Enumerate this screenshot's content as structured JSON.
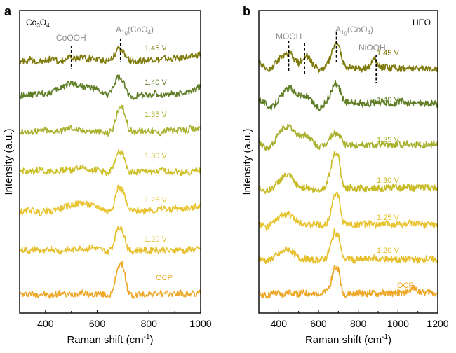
{
  "chart_data": [
    {
      "type": "line",
      "panel_label": "a",
      "sample": "Co3O4",
      "sample_parts": [
        "Co",
        "3",
        "O",
        "4"
      ],
      "xlabel": "Raman shift (cm",
      "xlabel_sup": "-1",
      "xlabel_close": ")",
      "ylabel": "Intensity (a.u.)",
      "xlim": [
        300,
        1000
      ],
      "xticks": [
        400,
        600,
        800,
        1000
      ],
      "xminor": [
        300,
        500,
        700,
        900
      ],
      "yticks": [],
      "grid": false,
      "annotations": [
        {
          "text": "CoOOH",
          "x": 500
        },
        {
          "text": "A1g(CoO4)",
          "parts": [
            "A",
            "1g",
            "(CoO",
            "4",
            ")"
          ],
          "x": 690
        }
      ],
      "x": [
        300,
        320,
        340,
        360,
        380,
        400,
        420,
        440,
        460,
        480,
        500,
        520,
        540,
        560,
        580,
        600,
        620,
        640,
        660,
        680,
        700,
        720,
        740,
        760,
        780,
        800,
        820,
        840,
        860,
        880,
        900,
        920,
        940,
        960,
        980,
        1000
      ],
      "series": [
        {
          "name": "OCP",
          "color": "#eea829",
          "values": [
            2.7,
            2.6,
            2.9,
            2.5,
            2.8,
            2.6,
            2.4,
            2.7,
            2.9,
            2.6,
            2.7,
            2.8,
            3.0,
            2.7,
            2.6,
            2.8,
            2.7,
            2.5,
            2.9,
            6.8,
            6.9,
            2.9,
            2.4,
            2.7,
            2.6,
            2.8,
            2.7,
            2.9,
            2.6,
            2.8,
            2.7,
            2.9,
            2.6,
            2.8,
            2.7,
            2.9
          ]
        },
        {
          "name": "1.20 V",
          "color": "#e6c02f",
          "values": [
            8.9,
            9.1,
            8.8,
            9.2,
            8.9,
            8.7,
            9.3,
            9.0,
            8.8,
            9.1,
            9.0,
            9.2,
            9.3,
            9.1,
            9.4,
            9.2,
            9.0,
            8.7,
            9.6,
            12.4,
            11.8,
            9.0,
            8.8,
            9.1,
            9.0,
            8.8,
            9.2,
            8.9,
            9.1,
            8.8,
            9.0,
            9.1,
            8.8,
            9.2,
            9.0,
            9.3
          ]
        },
        {
          "name": "1.25 V",
          "color": "#e8c432",
          "values": [
            14.6,
            14.4,
            14.8,
            14.5,
            14.3,
            14.6,
            14.4,
            14.9,
            15.0,
            15.2,
            15.4,
            15.6,
            15.8,
            15.5,
            15.3,
            15.2,
            14.9,
            14.4,
            15.2,
            18.0,
            17.6,
            14.8,
            14.5,
            14.7,
            14.6,
            14.9,
            14.6,
            14.8,
            15.0,
            14.7,
            15.1,
            14.8,
            15.0,
            14.9,
            15.2,
            15.4
          ]
        },
        {
          "name": "1.30 V",
          "color": "#cdbf26",
          "values": [
            20.1,
            20.4,
            20.0,
            20.3,
            20.5,
            20.2,
            20.4,
            20.1,
            20.3,
            20.6,
            20.4,
            20.7,
            20.9,
            20.6,
            20.4,
            20.5,
            20.2,
            20.0,
            20.6,
            23.3,
            22.8,
            20.3,
            20.0,
            20.2,
            20.1,
            20.3,
            20.0,
            20.2,
            20.4,
            20.1,
            20.3,
            20.0,
            20.2,
            20.1,
            20.3,
            20.4
          ]
        },
        {
          "name": "1.35 V",
          "color": "#a9b02e",
          "values": [
            25.8,
            26.0,
            25.7,
            26.1,
            25.9,
            26.2,
            25.8,
            26.1,
            26.0,
            26.3,
            26.5,
            26.2,
            26.0,
            26.1,
            25.9,
            26.0,
            25.8,
            25.6,
            26.3,
            28.8,
            29.4,
            26.4,
            25.8,
            26.1,
            25.9,
            26.2,
            25.9,
            25.7,
            26.0,
            26.2,
            25.9,
            26.1,
            26.0,
            26.3,
            26.2,
            26.6
          ]
        },
        {
          "name": "1.40 V",
          "color": "#5f7e26",
          "values": [
            31.0,
            31.3,
            31.1,
            31.2,
            31.4,
            31.3,
            31.6,
            31.8,
            32.2,
            32.6,
            32.9,
            32.6,
            32.4,
            32.3,
            32.1,
            31.9,
            31.5,
            31.0,
            32.2,
            33.8,
            33.0,
            31.2,
            30.9,
            31.1,
            31.2,
            31.0,
            31.3,
            31.2,
            31.1,
            31.4,
            31.2,
            31.5,
            31.4,
            31.6,
            31.9,
            32.4
          ]
        },
        {
          "name": "1.45 V",
          "color": "#7f7a0c",
          "values": [
            35.8,
            36.0,
            36.2,
            35.9,
            36.1,
            36.0,
            36.3,
            36.1,
            35.9,
            36.2,
            36.5,
            36.3,
            36.6,
            36.2,
            36.4,
            36.2,
            36.1,
            36.0,
            36.6,
            37.6,
            37.3,
            36.2,
            35.9,
            36.1,
            36.0,
            36.2,
            36.3,
            36.1,
            36.4,
            36.2,
            36.5,
            36.3,
            36.6,
            36.5,
            36.8,
            37.0
          ]
        }
      ]
    },
    {
      "type": "line",
      "panel_label": "b",
      "sample": "HEO",
      "sample_parts": [
        "HEO"
      ],
      "xlabel": "Raman shift (cm",
      "xlabel_sup": "-1",
      "xlabel_close": ")",
      "ylabel": "Intensity (a.u.)",
      "xlim": [
        300,
        1200
      ],
      "xticks": [
        400,
        600,
        800,
        1000,
        1200
      ],
      "xminor": [
        300,
        500,
        700,
        900,
        1100
      ],
      "yticks": [],
      "grid": false,
      "annotations": [
        {
          "text": "MOOH",
          "x": [
            450,
            530
          ]
        },
        {
          "text": "A1g(CoO4)",
          "parts": [
            "A",
            "1g",
            "(CoO",
            "4",
            ")"
          ],
          "x": 690
        },
        {
          "text": "NiOOH",
          "x": 890
        }
      ],
      "x": [
        300,
        320,
        340,
        360,
        380,
        400,
        420,
        440,
        460,
        480,
        500,
        520,
        540,
        560,
        580,
        600,
        620,
        640,
        660,
        680,
        700,
        720,
        740,
        760,
        780,
        800,
        820,
        840,
        860,
        880,
        900,
        920,
        940,
        960,
        980,
        1000,
        1020,
        1040,
        1060,
        1080,
        1100,
        1120,
        1140,
        1160,
        1180,
        1200
      ],
      "series": [
        {
          "name": "OCP",
          "color": "#eea829",
          "values": [
            2.8,
            2.6,
            2.4,
            2.7,
            2.9,
            2.8,
            2.6,
            2.9,
            3.0,
            2.8,
            2.7,
            2.9,
            2.8,
            2.7,
            2.6,
            2.9,
            2.8,
            3.1,
            4.2,
            6.6,
            6.3,
            3.0,
            2.6,
            2.8,
            2.7,
            2.9,
            2.8,
            2.7,
            2.9,
            2.8,
            2.7,
            2.9,
            2.8,
            2.9,
            2.7,
            3.0,
            2.8,
            3.0,
            3.2,
            3.6,
            3.2,
            3.0,
            2.9,
            3.1,
            2.9,
            2.8
          ]
        },
        {
          "name": "1.20 V",
          "color": "#e6c02f",
          "values": [
            7.8,
            7.6,
            7.4,
            7.7,
            8.1,
            8.4,
            8.8,
            9.2,
            9.0,
            8.4,
            7.9,
            7.7,
            7.8,
            7.6,
            7.5,
            7.7,
            7.6,
            7.9,
            9.6,
            11.6,
            11.2,
            8.1,
            7.6,
            7.8,
            7.5,
            7.7,
            7.6,
            7.8,
            7.7,
            7.9,
            7.6,
            7.8,
            7.7,
            7.6,
            7.8,
            7.5,
            7.7,
            7.6,
            7.8,
            7.7,
            7.5,
            7.6,
            7.8,
            7.7,
            7.6,
            7.5
          ]
        },
        {
          "name": "1.25 V",
          "color": "#e8c432",
          "values": [
            12.8,
            12.5,
            12.2,
            12.6,
            13.1,
            13.6,
            14.0,
            14.2,
            14.0,
            13.4,
            13.0,
            12.9,
            12.7,
            12.5,
            12.8,
            12.6,
            12.4,
            12.7,
            14.4,
            17.1,
            16.8,
            13.2,
            12.6,
            12.8,
            12.5,
            12.7,
            12.9,
            12.6,
            12.8,
            12.5,
            12.7,
            12.6,
            12.9,
            12.7,
            12.6,
            12.8,
            12.5,
            12.7,
            12.9,
            12.6,
            12.8,
            12.7,
            12.5,
            12.8,
            12.6,
            12.5
          ]
        },
        {
          "name": "1.30 V",
          "color": "#c7bb28",
          "values": [
            17.8,
            17.6,
            17.4,
            17.7,
            18.2,
            18.8,
            19.4,
            19.7,
            19.5,
            18.6,
            18.0,
            17.9,
            18.1,
            17.8,
            17.5,
            17.6,
            17.8,
            18.3,
            20.5,
            23.0,
            22.6,
            18.6,
            17.7,
            17.9,
            17.6,
            17.8,
            17.9,
            17.7,
            18.0,
            17.8,
            17.9,
            17.7,
            18.0,
            17.8,
            18.1,
            17.9,
            17.8,
            18.2,
            17.9,
            17.8,
            18.0,
            17.9,
            18.1,
            17.8,
            17.9,
            17.8
          ]
        },
        {
          "name": "1.35 V",
          "color": "#a9b02e",
          "values": [
            24.4,
            24.0,
            23.4,
            23.8,
            24.6,
            25.6,
            26.3,
            26.6,
            26.5,
            25.8,
            25.4,
            25.3,
            25.4,
            24.9,
            24.2,
            23.7,
            23.8,
            24.2,
            25.1,
            25.7,
            25.5,
            24.6,
            23.9,
            24.1,
            23.8,
            24.0,
            24.2,
            23.9,
            24.1,
            24.0,
            23.9,
            24.2,
            24.0,
            24.1,
            23.9,
            24.2,
            24.0,
            24.3,
            24.1,
            24.0,
            24.2,
            23.9,
            24.1,
            24.0,
            24.2,
            24.3
          ]
        },
        {
          "name": "1.40 V",
          "color": "#5f7e26",
          "values": [
            30.6,
            30.2,
            29.8,
            29.2,
            29.8,
            30.6,
            31.2,
            31.9,
            32.2,
            31.6,
            31.1,
            31.0,
            30.9,
            30.4,
            29.8,
            29.2,
            29.6,
            30.2,
            31.2,
            32.9,
            32.6,
            30.8,
            30.0,
            30.2,
            29.9,
            30.1,
            29.8,
            30.0,
            29.9,
            30.1,
            29.8,
            30.2,
            29.9,
            30.0,
            29.8,
            30.1,
            30.3,
            29.9,
            30.0,
            29.8,
            30.1,
            30.0,
            29.9,
            29.8,
            30.0,
            29.7
          ]
        },
        {
          "name": "1.45 V",
          "color": "#7f7a0c",
          "values": [
            36.0,
            35.4,
            34.6,
            34.9,
            35.6,
            36.2,
            36.8,
            36.9,
            37.0,
            36.2,
            35.7,
            36.3,
            36.9,
            36.0,
            35.2,
            34.8,
            34.9,
            35.3,
            36.5,
            38.3,
            38.4,
            36.0,
            35.0,
            35.2,
            34.9,
            35.1,
            34.8,
            35.0,
            35.3,
            36.6,
            35.6,
            35.0,
            35.2,
            34.9,
            35.1,
            34.8,
            35.0,
            34.9,
            35.1,
            34.8,
            35.0,
            34.9,
            35.1,
            34.8,
            35.0,
            34.9
          ]
        }
      ]
    }
  ]
}
